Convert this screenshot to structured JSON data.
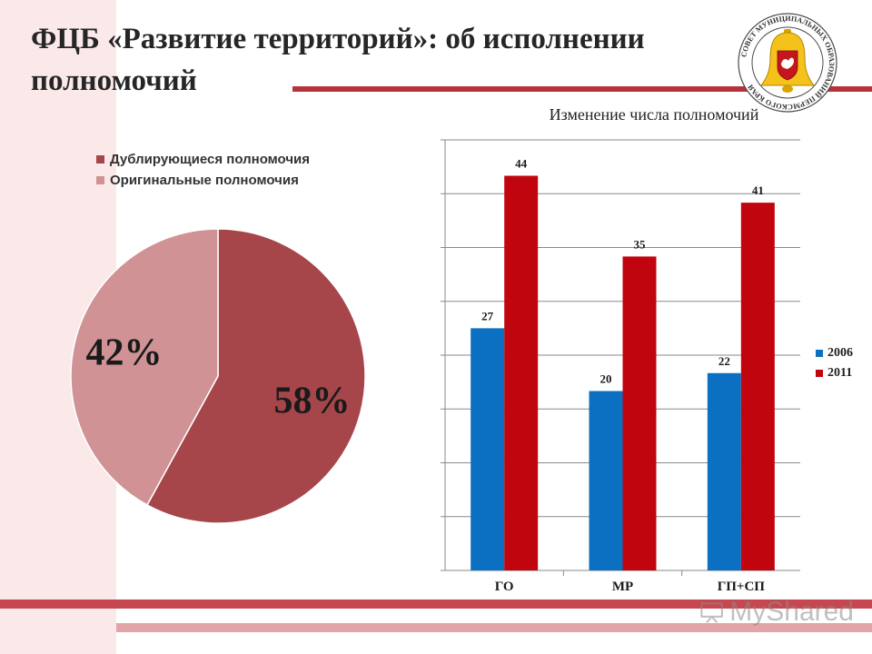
{
  "slide": {
    "title": "ФЦБ «Развитие территорий»: об исполнении полномочий"
  },
  "emblem": {
    "ring_text": "СОВЕТ МУНИЦИПАЛЬНЫХ ОБРАЗОВАНИЙ ПЕРМСКОГО КРАЯ",
    "bell_color": "#f4c21a",
    "shield_color": "#c4161c"
  },
  "watermark": {
    "text": "MyShared"
  },
  "chart_data": [
    {
      "type": "pie",
      "title": "",
      "legend_position": "top-left",
      "labels": [
        "Дублирующиеся полномочия",
        "Оригинальные полномочия"
      ],
      "values": [
        58,
        42
      ],
      "value_labels": [
        "58%",
        "42%"
      ],
      "colors": [
        "#a6464a",
        "#d09294"
      ]
    },
    {
      "type": "bar",
      "title": "Изменение числа полномочий",
      "categories": [
        "ГО",
        "МР",
        "ГП+СП"
      ],
      "series": [
        {
          "name": "2006",
          "values": [
            27,
            20,
            22
          ],
          "color": "#0c70c2"
        },
        {
          "name": "2011",
          "values": [
            44,
            35,
            41
          ],
          "color": "#c1050e"
        }
      ],
      "xlabel": "",
      "ylabel": "",
      "ylim": [
        0,
        48
      ],
      "grid": true,
      "legend_position": "right"
    }
  ]
}
